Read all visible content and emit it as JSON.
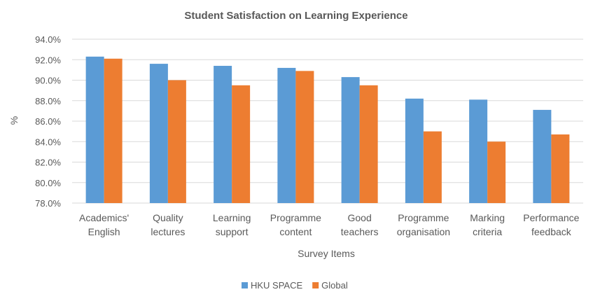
{
  "chart_data": {
    "type": "bar",
    "title": "Student Satisfaction on Learning Experience",
    "xlabel": "Survey Items",
    "ylabel": "%",
    "ylim": [
      78,
      94
    ],
    "ytick_step": 2,
    "ytick_labels": [
      "78.0%",
      "80.0%",
      "82.0%",
      "84.0%",
      "86.0%",
      "88.0%",
      "90.0%",
      "92.0%",
      "94.0%"
    ],
    "grid": true,
    "legend_placement": "bottom",
    "categories": [
      [
        "Academics'",
        "English"
      ],
      [
        "Quality",
        "lectures"
      ],
      [
        "Learning",
        "support"
      ],
      [
        "Programme",
        "content"
      ],
      [
        "Good",
        "teachers"
      ],
      [
        "Programme",
        "organisation"
      ],
      [
        "Marking",
        "criteria"
      ],
      [
        "Performance",
        "feedback"
      ]
    ],
    "series": [
      {
        "name": "HKU SPACE",
        "color": "#5B9BD5",
        "values": [
          92.3,
          91.6,
          91.4,
          91.2,
          90.3,
          88.2,
          88.1,
          87.1
        ]
      },
      {
        "name": "Global",
        "color": "#ED7D31",
        "values": [
          92.1,
          90.0,
          89.5,
          90.9,
          89.5,
          85.0,
          84.0,
          84.7
        ]
      }
    ]
  }
}
